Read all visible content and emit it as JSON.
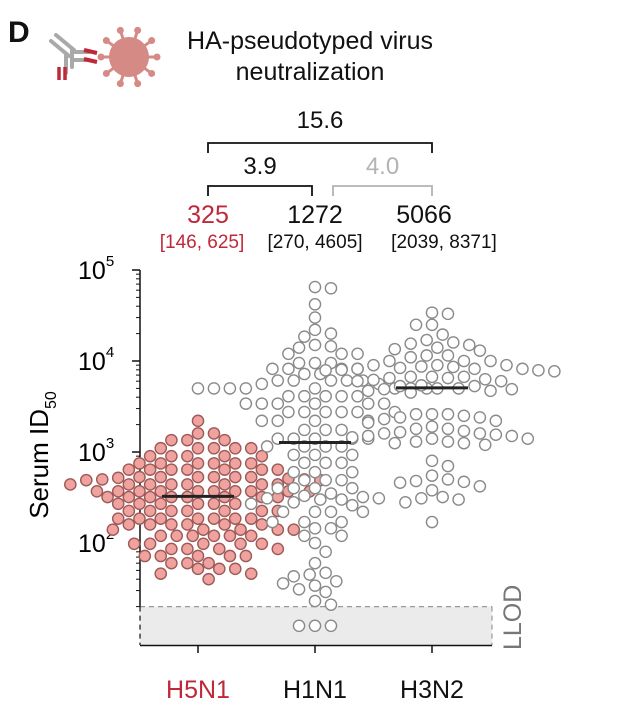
{
  "panel_label": "D",
  "title": "HA-pseudotyped virus neutralization",
  "title_lines": [
    "HA-pseudotyped virus",
    "neutralization"
  ],
  "colors": {
    "h5n1": "#c0283a",
    "h5n1_fill": "#f0a29e",
    "h5n1_stroke": "#9c5a58",
    "open_stroke": "#8a8a8a",
    "median": "#222222",
    "comparison_gray": "#b3b3b3",
    "llod_fill": "#ebebeb",
    "llod_text": "#777777",
    "virus_icon": "#d68a86",
    "antibody_red": "#c0283a",
    "antibody_gray": "#a9a9a9"
  },
  "icons": [
    "antibody-icon",
    "virus-icon"
  ],
  "comparisons": [
    {
      "from": "H5N1",
      "to": "H3N2",
      "label": "15.6",
      "muted": false
    },
    {
      "from": "H5N1",
      "to": "H1N1",
      "label": "3.9",
      "muted": false
    },
    {
      "from": "H1N1",
      "to": "H3N2",
      "label": "4.0",
      "muted": true
    }
  ],
  "summary": [
    {
      "group": "H5N1",
      "median": "325",
      "ci": "[146, 625]"
    },
    {
      "group": "H1N1",
      "median": "1272",
      "ci": "[270, 4605]"
    },
    {
      "group": "H3N2",
      "median": "5066",
      "ci": "[2039, 8371]"
    }
  ],
  "chart_data": {
    "type": "scatter",
    "subtype": "beeswarm",
    "title": "HA-pseudotyped virus neutralization",
    "xlabel": "",
    "ylabel": "Serum ID",
    "ylabel_subscript": "50",
    "yscale": "log",
    "ylim": [
      10,
      100000
    ],
    "yticks": [
      100,
      1000,
      10000,
      100000
    ],
    "ytick_labels": [
      {
        "base": "10",
        "exp": "2"
      },
      {
        "base": "10",
        "exp": "3"
      },
      {
        "base": "10",
        "exp": "4"
      },
      {
        "base": "10",
        "exp": "5"
      }
    ],
    "categories": [
      "H5N1",
      "H1N1",
      "H3N2"
    ],
    "llod_label": "LLOD",
    "llod_value": 20,
    "grid": false,
    "series": [
      {
        "name": "H5N1",
        "median": 325,
        "marker": "filled",
        "values": [
          2200,
          1600,
          1600,
          1350,
          1350,
          1350,
          1100,
          1100,
          1100,
          1100,
          1100,
          900,
          900,
          900,
          900,
          900,
          750,
          750,
          750,
          750,
          750,
          750,
          640,
          640,
          640,
          640,
          640,
          640,
          640,
          530,
          530,
          530,
          530,
          530,
          530,
          520,
          510,
          500,
          500,
          490,
          490,
          440,
          440,
          440,
          440,
          440,
          440,
          440,
          440,
          370,
          370,
          370,
          370,
          370,
          370,
          370,
          370,
          370,
          370,
          320,
          320,
          320,
          320,
          320,
          320,
          320,
          320,
          270,
          270,
          270,
          270,
          270,
          270,
          270,
          225,
          225,
          225,
          225,
          225,
          225,
          225,
          185,
          185,
          185,
          185,
          185,
          185,
          185,
          160,
          160,
          160,
          160,
          160,
          160,
          140,
          140,
          140,
          140,
          140,
          120,
          120,
          120,
          120,
          120,
          120,
          98,
          98,
          98,
          98,
          98,
          86,
          86,
          86,
          86,
          72,
          72,
          72,
          72,
          72,
          60,
          60,
          60,
          52,
          52,
          52,
          46,
          46,
          40
        ]
      },
      {
        "name": "H1N1",
        "median": 1272,
        "marker": "open",
        "values": [
          65000,
          63000,
          42000,
          30000,
          22000,
          20000,
          18500,
          15000,
          14500,
          14000,
          12000,
          12000,
          12000,
          9500,
          9500,
          9500,
          8200,
          8200,
          8200,
          8200,
          7200,
          7200,
          6100,
          6100,
          6100,
          6100,
          6100,
          5600,
          5600,
          5000,
          5000,
          5000,
          5000,
          5000,
          5000,
          5000,
          5000,
          4100,
          4100,
          4100,
          4100,
          4100,
          3400,
          3400,
          3400,
          3400,
          3400,
          3400,
          2750,
          2750,
          2750,
          2750,
          2750,
          2750,
          2200,
          2200,
          2200,
          2200,
          1750,
          1750,
          1750,
          1400,
          1400,
          1400,
          1400,
          1400,
          1150,
          1150,
          1150,
          1150,
          930,
          930,
          930,
          760,
          760,
          760,
          600,
          600,
          600,
          490,
          490,
          490,
          400,
          400,
          400,
          400,
          350,
          330,
          320,
          310,
          310,
          300,
          300,
          280,
          270,
          260,
          220,
          220,
          220,
          220,
          170,
          170,
          170,
          145,
          145,
          120,
          120,
          100,
          80,
          60,
          47,
          45,
          43,
          38,
          36,
          34,
          31,
          29,
          23,
          21,
          13,
          13,
          13
        ]
      },
      {
        "name": "H3N2",
        "median": 5066,
        "marker": "open",
        "values": [
          34000,
          33000,
          25000,
          25000,
          19500,
          17000,
          16000,
          15500,
          15000,
          14000,
          13500,
          13000,
          11500,
          11500,
          11000,
          10000,
          10000,
          10000,
          9000,
          9000,
          9000,
          8700,
          8600,
          8400,
          8200,
          8200,
          8200,
          8000,
          7900,
          7900,
          7700,
          6700,
          6700,
          6700,
          6500,
          6500,
          6300,
          6200,
          6000,
          6000,
          5400,
          5300,
          5300,
          5000,
          5000,
          4900,
          4900,
          4700,
          4700,
          4500,
          2600,
          2600,
          2600,
          2500,
          2400,
          2400,
          2300,
          2200,
          2100,
          1900,
          1800,
          1800,
          1700,
          1650,
          1600,
          1600,
          1550,
          1500,
          1500,
          1450,
          1400,
          1400,
          1300,
          1300,
          1250,
          1250,
          1200,
          800,
          700,
          550,
          500,
          480,
          470,
          460,
          420,
          380,
          320,
          310,
          300,
          280,
          170
        ]
      }
    ]
  }
}
